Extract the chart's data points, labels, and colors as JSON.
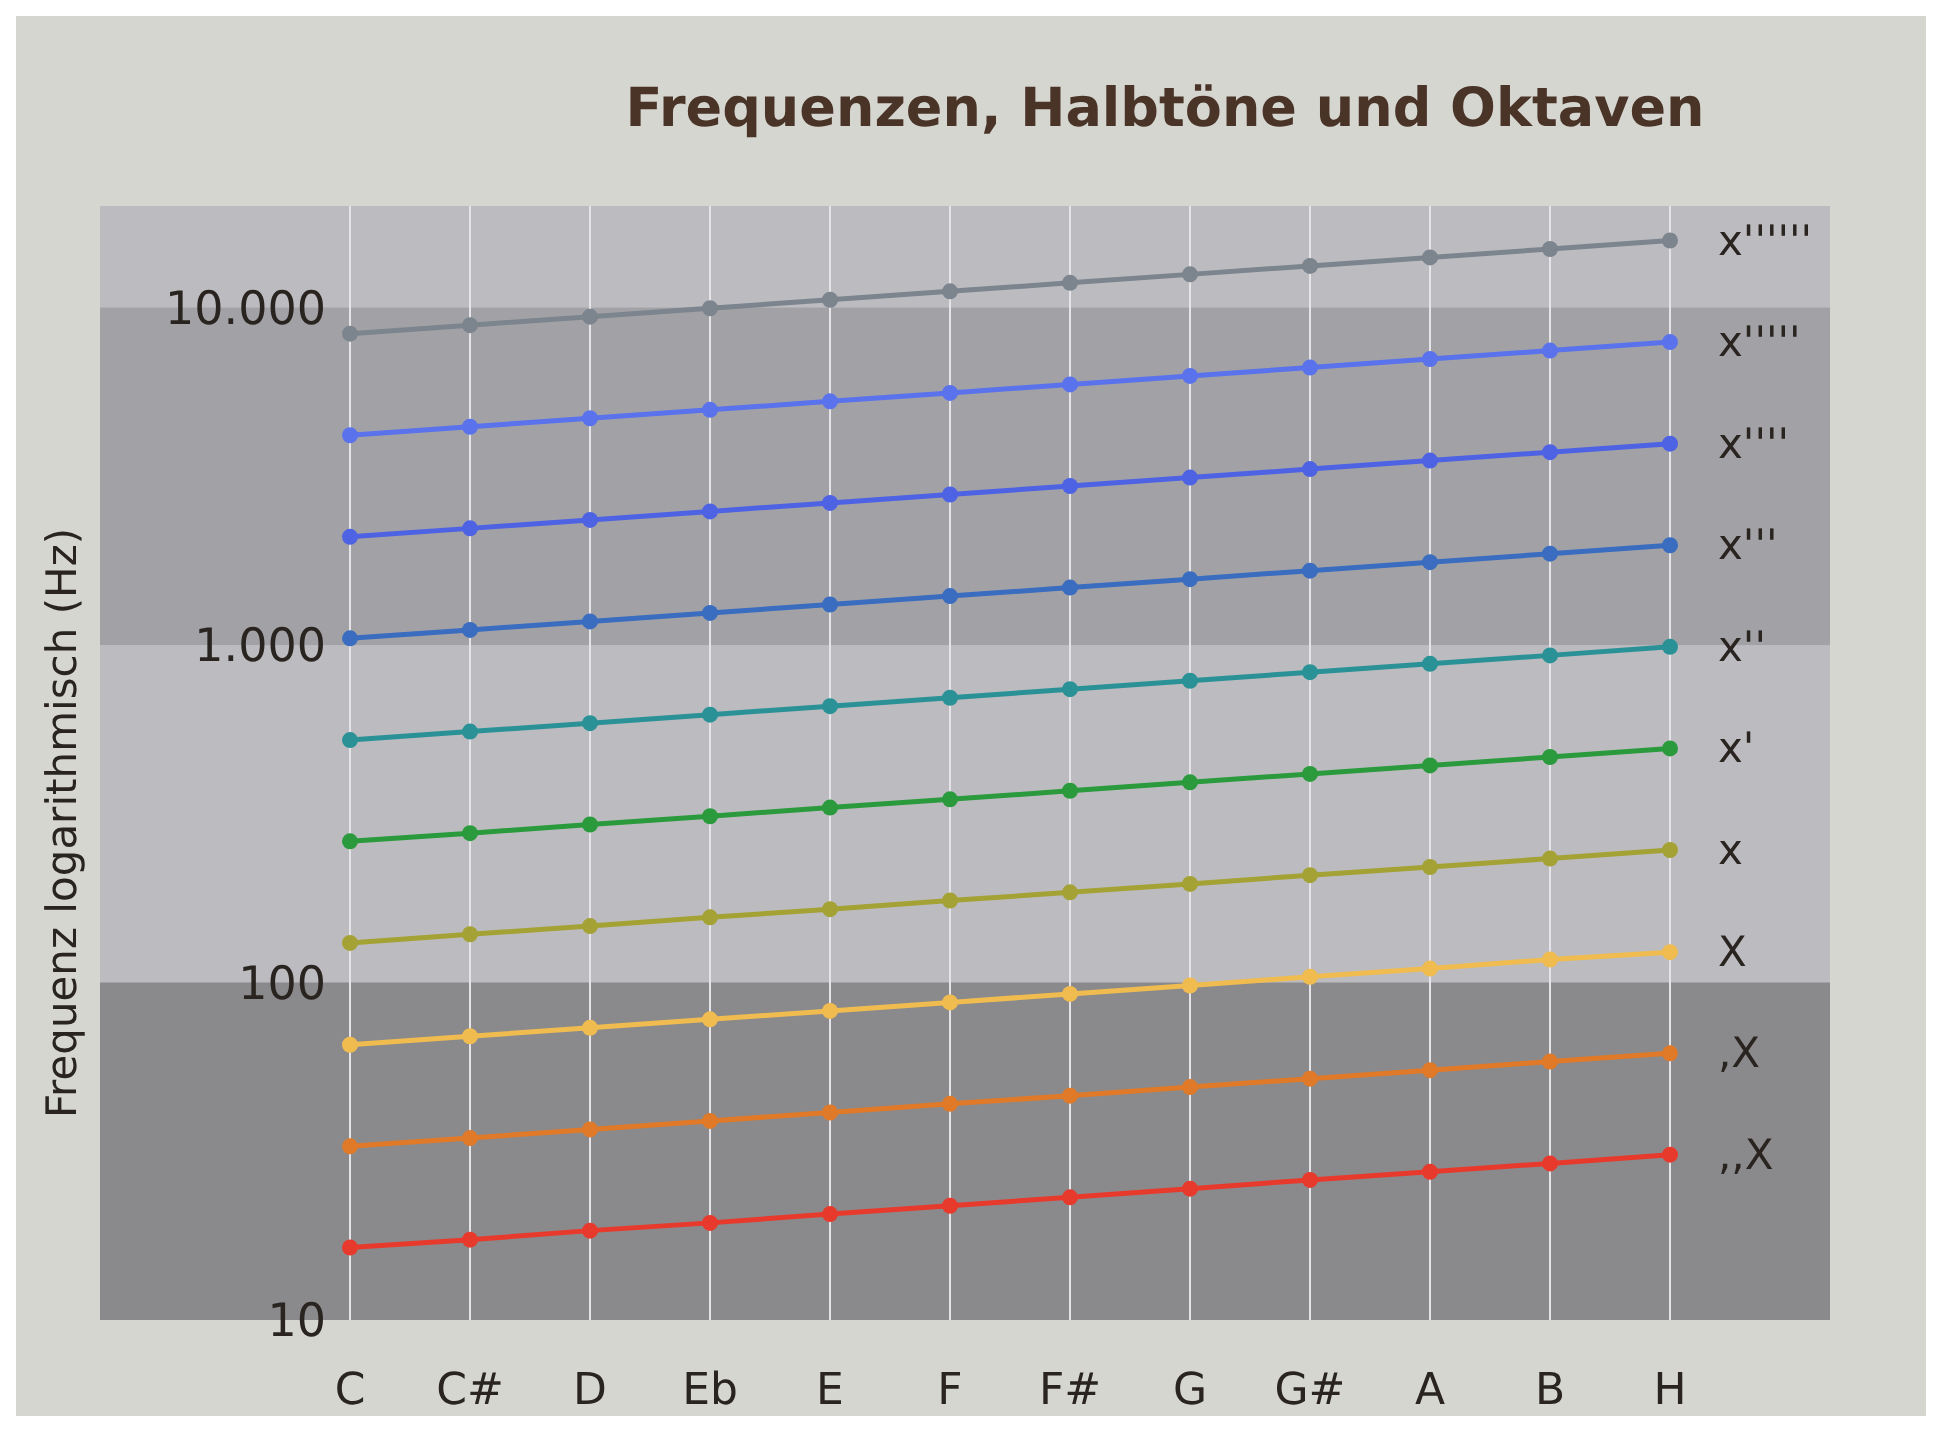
{
  "chart_data": {
    "type": "line",
    "title": "Frequenzen, Halbtöne und Oktaven",
    "ylabel": "Frequenz logarithmisch (Hz)",
    "categories": [
      "C",
      "C#",
      "D",
      "Eb",
      "E",
      "F",
      "F#",
      "G",
      "G#",
      "A",
      "B",
      "H"
    ],
    "log": true,
    "grid": "x",
    "marker": "circle",
    "line_style": "solid",
    "ylim": [
      10,
      20000
    ],
    "yticks": [
      10,
      100,
      {
        "value": 1000,
        "label": "1.000"
      },
      {
        "value": 10000,
        "label": "10.000"
      }
    ],
    "bands": [
      {
        "axis": "y",
        "from": 10,
        "to": 100,
        "color": "#8a8a8c"
      },
      {
        "axis": "y",
        "from": 1000,
        "to": 10000,
        "color": "#a2a2a6"
      }
    ],
    "series": [
      {
        "name": ",,X",
        "color": "#e83a2c",
        "values": [
          16.4,
          17.3,
          18.4,
          19.4,
          20.6,
          21.8,
          23.1,
          24.5,
          26.0,
          27.5,
          29.1,
          30.9
        ]
      },
      {
        "name": ",X",
        "color": "#e07a28",
        "values": [
          32.7,
          34.6,
          36.7,
          38.9,
          41.2,
          43.7,
          46.2,
          49.0,
          51.9,
          55.0,
          58.3,
          61.7
        ]
      },
      {
        "name": "X",
        "color": "#f0bc50",
        "values": [
          65.4,
          69.3,
          73.4,
          77.8,
          82.4,
          87.3,
          92.5,
          98.0,
          104,
          110,
          117,
          123
        ]
      },
      {
        "name": "x",
        "color": "#a4a234",
        "values": [
          131,
          139,
          147,
          156,
          165,
          175,
          185,
          196,
          208,
          220,
          233,
          247
        ]
      },
      {
        "name": "x'",
        "color": "#2a9a3c",
        "values": [
          262,
          277,
          294,
          311,
          330,
          349,
          370,
          392,
          415,
          440,
          466,
          494
        ]
      },
      {
        "name": "x''",
        "color": "#2a9296",
        "values": [
          523,
          554,
          587,
          622,
          659,
          698,
          740,
          784,
          831,
          880,
          932,
          988
        ]
      },
      {
        "name": "x'''",
        "color": "#3a6cc0",
        "values": [
          1047,
          1109,
          1175,
          1245,
          1319,
          1397,
          1480,
          1568,
          1661,
          1760,
          1865,
          1976
        ]
      },
      {
        "name": "x''''",
        "color": "#4e62e4",
        "values": [
          2093,
          2217,
          2349,
          2489,
          2637,
          2794,
          2960,
          3136,
          3322,
          3520,
          3729,
          3951
        ]
      },
      {
        "name": "x'''''",
        "color": "#5a72ec",
        "values": [
          4186,
          4435,
          4699,
          4978,
          5274,
          5588,
          5920,
          6272,
          6645,
          7040,
          7459,
          7902
        ]
      },
      {
        "name": "x''''''",
        "color": "#7c848e",
        "values": [
          8372,
          8870,
          9397,
          9956,
          10548,
          11175,
          11840,
          12544,
          13290,
          14080,
          14917,
          15804
        ]
      }
    ]
  }
}
